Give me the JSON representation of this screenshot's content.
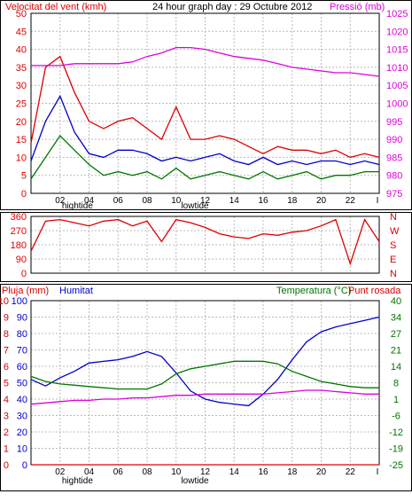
{
  "title": "24 hour graph day : 29 Octubre 2012",
  "colors": {
    "red": "#dd0000",
    "blue": "#0000cc",
    "green": "#007700",
    "magenta": "#dd00dd",
    "grid": "#bbbbbb"
  },
  "chart_data": [
    {
      "type": "line",
      "name": "wind-pressure",
      "left_axis_label": "Velocitat del vent (kmh)",
      "right_axis_label": "Pressió (mb)",
      "left_ticks": [
        "50",
        "45",
        "40",
        "35",
        "30",
        "25",
        "20",
        "15",
        "10",
        "5",
        "0"
      ],
      "right_ticks": [
        "1025",
        "1020",
        "1015",
        "1010",
        "1005",
        "1000",
        "995",
        "990",
        "985",
        "980",
        "975"
      ],
      "x_ticks": [
        "02",
        "04",
        "06",
        "08",
        "10",
        "12",
        "14",
        "16",
        "18",
        "20",
        "22"
      ],
      "x_right_marker": "I",
      "tide_labels": [
        "hightide",
        "lowtide"
      ],
      "ylim_left": [
        0,
        50
      ],
      "ylim_right": [
        975,
        1025
      ],
      "x_hours": [
        0,
        1,
        2,
        3,
        4,
        5,
        6,
        7,
        8,
        9,
        10,
        11,
        12,
        13,
        14,
        15,
        16,
        17,
        18,
        19,
        20,
        21,
        22,
        23,
        24
      ],
      "series": [
        {
          "color": "red",
          "values": [
            14,
            35,
            38,
            28,
            20,
            18,
            20,
            21,
            18,
            15,
            24,
            15,
            15,
            16,
            15,
            13,
            11,
            13,
            12,
            12,
            11,
            12,
            10,
            11,
            10
          ]
        },
        {
          "color": "blue",
          "values": [
            9,
            20,
            27,
            17,
            11,
            10,
            12,
            12,
            11,
            9,
            10,
            9,
            10,
            11,
            9,
            8,
            10,
            8,
            9,
            8,
            9,
            9,
            8,
            9,
            8
          ]
        },
        {
          "color": "green",
          "values": [
            4,
            10,
            16,
            12,
            8,
            5,
            6,
            5,
            6,
            4,
            7,
            4,
            5,
            6,
            5,
            4,
            6,
            4,
            5,
            6,
            4,
            5,
            5,
            6,
            6
          ]
        },
        {
          "color": "magenta",
          "values": [
            1010.5,
            1010.5,
            1010.5,
            1011,
            1011,
            1011,
            1011,
            1011.5,
            1013,
            1014,
            1015.5,
            1015.5,
            1015,
            1014,
            1013,
            1012.5,
            1012,
            1011,
            1010,
            1009.5,
            1009,
            1008.5,
            1008.5,
            1008,
            1007.5
          ]
        }
      ]
    },
    {
      "type": "line",
      "name": "wind-direction",
      "left_ticks": [
        "360",
        "270",
        "180",
        "90",
        "0"
      ],
      "right_ticks": [
        "N",
        "W",
        "S",
        "E",
        "N"
      ],
      "ylim": [
        0,
        360
      ],
      "x_hours": [
        0,
        1,
        2,
        3,
        4,
        5,
        6,
        7,
        8,
        9,
        10,
        11,
        12,
        13,
        14,
        15,
        16,
        17,
        18,
        19,
        20,
        21,
        22,
        23,
        24
      ],
      "series": [
        {
          "color": "red",
          "values": [
            140,
            330,
            340,
            320,
            300,
            330,
            340,
            300,
            330,
            200,
            340,
            320,
            290,
            250,
            230,
            220,
            250,
            240,
            260,
            270,
            300,
            340,
            60,
            340,
            200
          ]
        }
      ]
    },
    {
      "type": "line",
      "name": "rain-humidity-temperature",
      "left_axis_label": "Pluja (mm)",
      "humidity_label": "Humitat",
      "right_axis_label": "Temperatura (°C)",
      "dewpoint_label": "Punt rosada",
      "rain_ticks": [
        "10",
        "9",
        "8",
        "7",
        "6",
        "5",
        "4",
        "3",
        "2",
        "1",
        "0"
      ],
      "humidity_ticks": [
        "100",
        "90",
        "80",
        "70",
        "60",
        "50",
        "40",
        "30",
        "20",
        "10",
        "0"
      ],
      "right_ticks": [
        "40",
        "34",
        "27",
        "21",
        "14",
        "8",
        "1",
        "-6",
        "-12",
        "-19",
        "-25"
      ],
      "x_ticks": [
        "02",
        "04",
        "06",
        "08",
        "10",
        "12",
        "14",
        "16",
        "18",
        "20",
        "22"
      ],
      "x_right_marker": "I",
      "tide_labels": [
        "hightide",
        "lowtide"
      ],
      "ylim_left": [
        0,
        100
      ],
      "ylim_right": [
        -25,
        40
      ],
      "x_hours": [
        0,
        1,
        2,
        3,
        4,
        5,
        6,
        7,
        8,
        9,
        10,
        11,
        12,
        13,
        14,
        15,
        16,
        17,
        18,
        19,
        20,
        21,
        22,
        23,
        24
      ],
      "series": [
        {
          "color": "blue",
          "values": [
            52,
            48,
            53,
            57,
            62,
            63,
            64,
            66,
            69,
            66,
            56,
            45,
            40,
            38,
            37,
            36,
            43,
            52,
            64,
            75,
            81,
            84,
            86,
            88,
            90
          ]
        },
        {
          "color": "green",
          "values": [
            10,
            8,
            7,
            6.5,
            6,
            5.5,
            5,
            5,
            5,
            7,
            11,
            13,
            14,
            15,
            16,
            16,
            16,
            15,
            12,
            10,
            8,
            7,
            6,
            5.5,
            5.5
          ]
        },
        {
          "color": "magenta",
          "values": [
            -1,
            -0.5,
            0,
            0.5,
            0.5,
            1,
            1,
            1.5,
            1.5,
            2,
            2.5,
            2.5,
            3,
            3,
            3,
            3,
            3,
            3.5,
            4,
            4.5,
            4.5,
            4,
            3.5,
            3,
            3
          ]
        },
        {
          "color": "red",
          "values": [
            0,
            0,
            0,
            0,
            0,
            0,
            0,
            0,
            0,
            0,
            0,
            0,
            0,
            0,
            0,
            0,
            0,
            0,
            0,
            0,
            0,
            0,
            0,
            0,
            0
          ]
        }
      ]
    }
  ]
}
